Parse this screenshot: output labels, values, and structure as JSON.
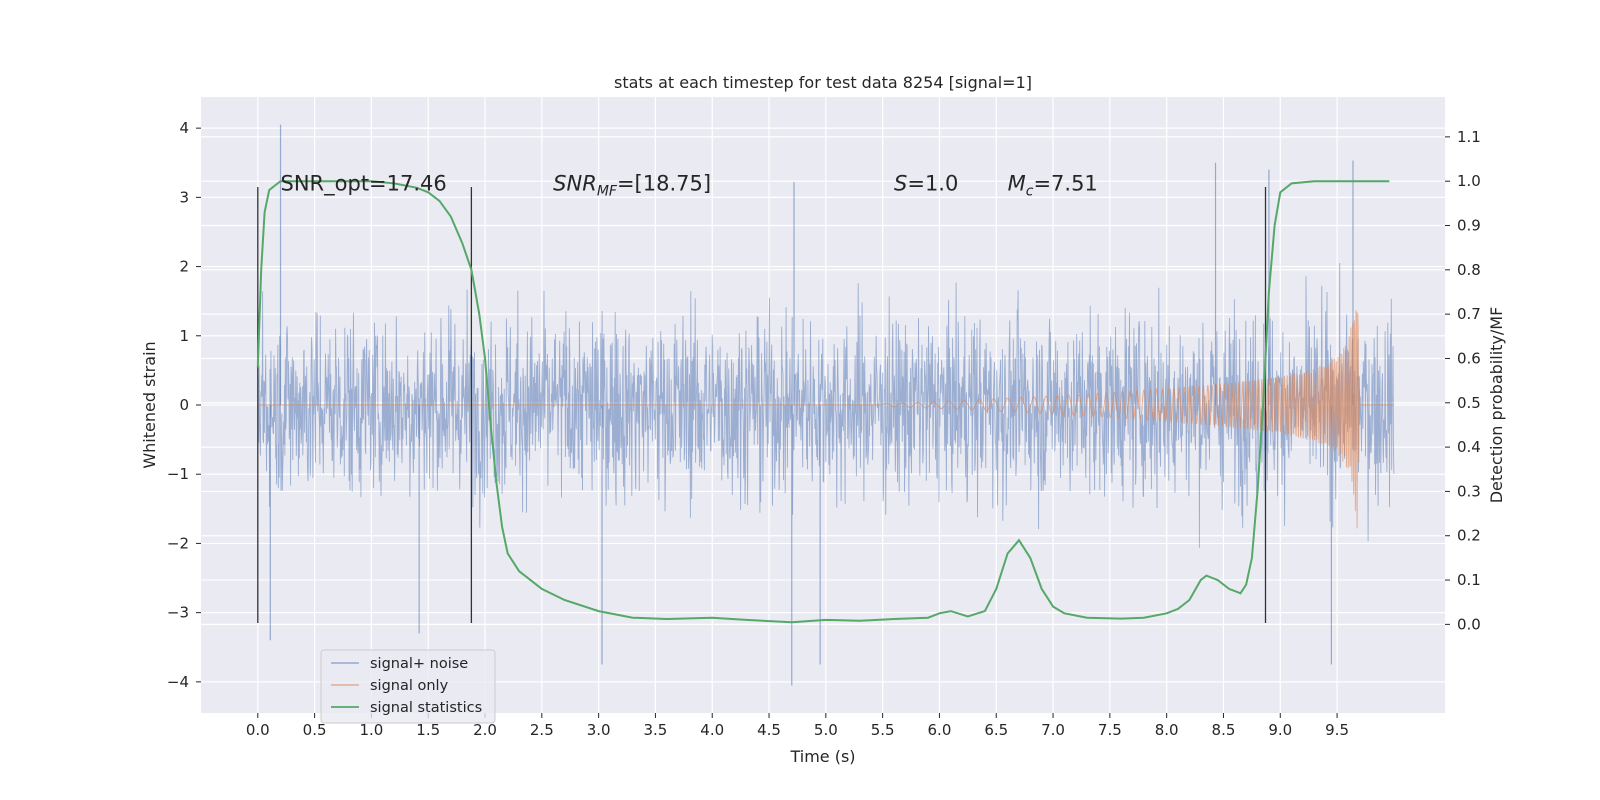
{
  "chart_data": {
    "type": "line",
    "title": "stats at each timestep for test data 8254 [signal=1]",
    "xlabel": "Time (s)",
    "ylabel_left": "Whitened strain",
    "ylabel_right": "Detection probability/MF",
    "xlim": [
      -0.5,
      10.45
    ],
    "ylim_left": [
      -4.45,
      4.45
    ],
    "ylim_right": [
      -0.2,
      1.19
    ],
    "x_ticks": [
      0.0,
      0.5,
      1.0,
      1.5,
      2.0,
      2.5,
      3.0,
      3.5,
      4.0,
      4.5,
      5.0,
      5.5,
      6.0,
      6.5,
      7.0,
      7.5,
      8.0,
      8.5,
      9.0,
      9.5
    ],
    "x_tick_labels": [
      "0.0",
      "0.5",
      "1.0",
      "1.5",
      "2.0",
      "2.5",
      "3.0",
      "3.5",
      "4.0",
      "4.5",
      "5.0",
      "5.5",
      "6.0",
      "6.5",
      "7.0",
      "7.5",
      "8.0",
      "8.5",
      "9.0",
      "9.5"
    ],
    "y_left_ticks": [
      -4,
      -3,
      -2,
      -1,
      0,
      1,
      2,
      3,
      4
    ],
    "y_left_tick_labels": [
      "−4",
      "−3",
      "−2",
      "−1",
      "0",
      "1",
      "2",
      "3",
      "4"
    ],
    "y_right_ticks": [
      0.0,
      0.1,
      0.2,
      0.3,
      0.4,
      0.5,
      0.6,
      0.7,
      0.8,
      0.9,
      1.0,
      1.1
    ],
    "y_right_tick_labels": [
      "0.0",
      "0.1",
      "0.2",
      "0.3",
      "0.4",
      "0.5",
      "0.6",
      "0.7",
      "0.8",
      "0.9",
      "1.0",
      "1.1"
    ],
    "grid": true,
    "legend_position": "lower-left",
    "vertical_markers_x": [
      0.0,
      1.88,
      8.87
    ],
    "vertical_markers_range_left": [
      -3.15,
      3.15
    ],
    "annotations": [
      {
        "x": 0.2,
        "y": 3.2,
        "text": "SNR_opt=17.46"
      },
      {
        "x": 2.6,
        "y": 3.2,
        "text_main": "SNR",
        "text_sub": "MF",
        "text_rest": "=[18.75]"
      },
      {
        "x": 5.6,
        "y": 3.2,
        "text_main": "S",
        "text_rest": "=1.0"
      },
      {
        "x": 6.6,
        "y": 3.2,
        "text_main": "M",
        "text_sub": "c",
        "text_rest": "=7.51"
      }
    ],
    "series": [
      {
        "name": "signal+ noise",
        "color": "#4c72b0",
        "axis": "left",
        "style": "noise",
        "x_range": [
          0.0,
          10.0
        ],
        "amplitude_core": 1.3,
        "amplitude_typical": 2.2,
        "extremes": [
          {
            "x": 0.2,
            "y": 4.05
          },
          {
            "x": 0.11,
            "y": -3.4
          },
          {
            "x": 1.42,
            "y": -3.3
          },
          {
            "x": 3.03,
            "y": -3.75
          },
          {
            "x": 4.72,
            "y": 3.22
          },
          {
            "x": 4.7,
            "y": -4.05
          },
          {
            "x": 4.95,
            "y": -3.75
          },
          {
            "x": 9.64,
            "y": 3.53
          },
          {
            "x": 9.45,
            "y": -3.75
          },
          {
            "x": 8.43,
            "y": 3.5
          },
          {
            "x": 8.9,
            "y": 3.4
          }
        ]
      },
      {
        "name": "signal only",
        "color": "#dd8452",
        "axis": "left",
        "style": "chirp",
        "x": [
          5.5,
          6.0,
          6.5,
          7.0,
          7.5,
          8.0,
          8.5,
          9.0,
          9.3,
          9.5,
          9.6,
          9.65,
          9.68,
          9.7
        ],
        "envelope": [
          0.02,
          0.05,
          0.09,
          0.13,
          0.18,
          0.24,
          0.31,
          0.41,
          0.52,
          0.7,
          0.95,
          1.35,
          1.85,
          0.0
        ]
      },
      {
        "name": "signal statistics",
        "color": "#55a868",
        "axis": "right",
        "style": "line",
        "x": [
          0.0,
          0.03,
          0.06,
          0.1,
          0.15,
          0.2,
          0.3,
          0.5,
          0.8,
          1.0,
          1.2,
          1.4,
          1.5,
          1.6,
          1.7,
          1.8,
          1.88,
          1.95,
          2.0,
          2.05,
          2.1,
          2.15,
          2.2,
          2.25,
          2.3,
          2.4,
          2.5,
          2.7,
          3.0,
          3.3,
          3.6,
          4.0,
          4.3,
          4.7,
          5.0,
          5.3,
          5.6,
          5.9,
          6.0,
          6.1,
          6.25,
          6.4,
          6.5,
          6.6,
          6.7,
          6.8,
          6.9,
          7.0,
          7.1,
          7.3,
          7.6,
          7.8,
          8.0,
          8.1,
          8.2,
          8.3,
          8.35,
          8.45,
          8.55,
          8.6,
          8.65,
          8.7,
          8.75,
          8.8,
          8.85,
          8.9,
          8.95,
          9.0,
          9.1,
          9.3,
          9.6,
          9.96
        ],
        "values": [
          0.58,
          0.8,
          0.93,
          0.98,
          0.99,
          1.0,
          1.0,
          1.0,
          1.0,
          1.0,
          0.995,
          0.985,
          0.975,
          0.955,
          0.92,
          0.86,
          0.8,
          0.7,
          0.6,
          0.45,
          0.32,
          0.22,
          0.16,
          0.14,
          0.12,
          0.1,
          0.08,
          0.055,
          0.03,
          0.015,
          0.012,
          0.015,
          0.01,
          0.005,
          0.01,
          0.008,
          0.012,
          0.015,
          0.025,
          0.03,
          0.018,
          0.03,
          0.08,
          0.16,
          0.19,
          0.15,
          0.08,
          0.04,
          0.025,
          0.015,
          0.013,
          0.015,
          0.025,
          0.035,
          0.055,
          0.1,
          0.11,
          0.1,
          0.08,
          0.075,
          0.07,
          0.09,
          0.15,
          0.3,
          0.5,
          0.75,
          0.9,
          0.975,
          0.995,
          1.0,
          1.0,
          1.0
        ]
      }
    ]
  }
}
